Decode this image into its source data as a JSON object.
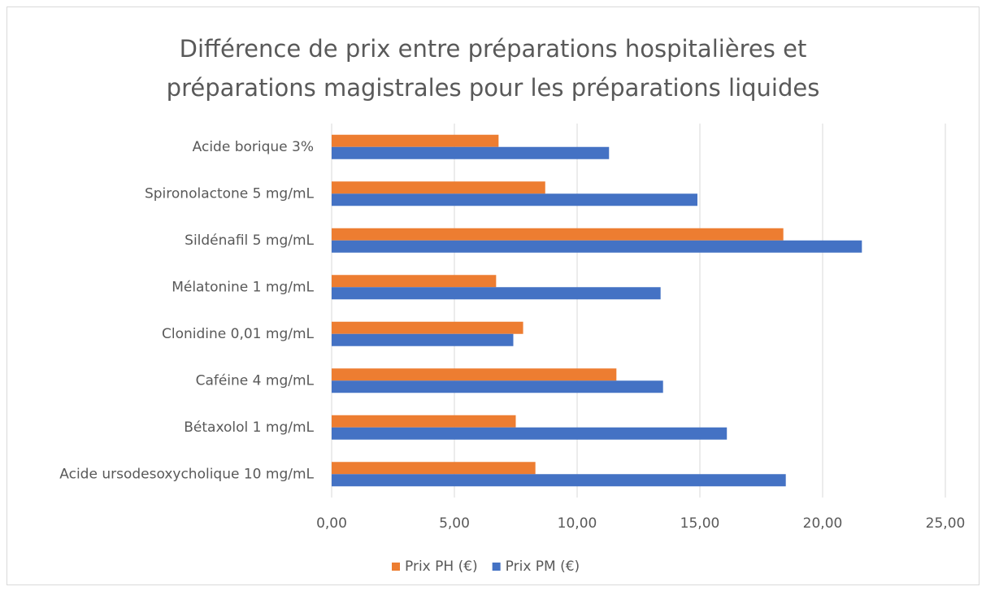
{
  "chart_data": {
    "type": "hbar",
    "title": "Différence de prix entre préparations hospitalières et préparations magistrales pour les préparations liquides",
    "categories": [
      "Acide borique 3%",
      "Spironolactone 5 mg/mL",
      "Sildénafil 5 mg/mL",
      "Mélatonine 1 mg/mL",
      "Clonidine 0,01 mg/mL",
      "Caféine 4 mg/mL",
      "Bétaxolol 1 mg/mL",
      "Acide ursodesoxycholique 10 mg/mL"
    ],
    "series": [
      {
        "name": "Prix PH (€)",
        "color": "#ed7d31",
        "values": [
          6.8,
          8.7,
          18.4,
          6.7,
          7.8,
          11.6,
          7.5,
          8.3
        ]
      },
      {
        "name": "Prix PM (€)",
        "color": "#4472c4",
        "values": [
          11.3,
          14.9,
          21.6,
          13.4,
          7.4,
          13.5,
          16.1,
          18.5
        ]
      }
    ],
    "xlim": [
      0,
      25
    ],
    "xticks": [
      {
        "value": 0,
        "label": "0,00"
      },
      {
        "value": 5,
        "label": "5,00"
      },
      {
        "value": 10,
        "label": "10,00"
      },
      {
        "value": 15,
        "label": "15,00"
      },
      {
        "value": 20,
        "label": "20,00"
      },
      {
        "value": 25,
        "label": "25,00"
      }
    ],
    "grid": true,
    "legend": "bottom"
  }
}
